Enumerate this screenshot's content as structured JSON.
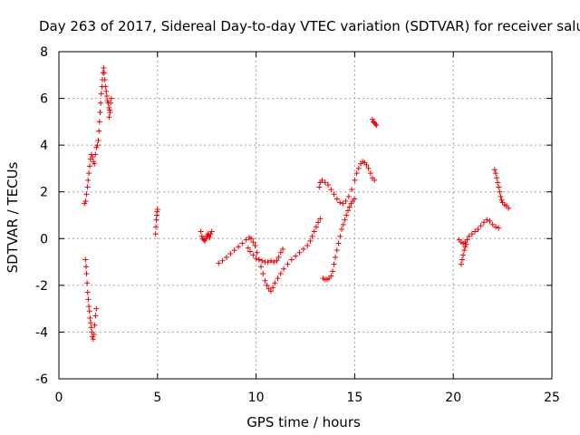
{
  "chart_data": {
    "type": "scatter",
    "title": "Day 263 of 2017, Sidereal Day-to-day VTEC variation (SDTVAR) for receiver salu",
    "xlabel": "GPS time / hours",
    "ylabel": "SDTVAR / TECUs",
    "xlim": [
      0,
      25
    ],
    "ylim": [
      -6,
      8
    ],
    "xticks": [
      "0",
      "5",
      "10",
      "15",
      "20",
      "25"
    ],
    "yticks": [
      "-6",
      "-4",
      "-2",
      "0",
      "2",
      "4",
      "6",
      "8"
    ],
    "grid": true,
    "marker": "plus",
    "color": "#ee0000",
    "series": [
      {
        "points": [
          [
            1.3,
            1.5
          ],
          [
            1.35,
            1.6
          ],
          [
            1.4,
            1.9
          ],
          [
            1.45,
            2.2
          ],
          [
            1.48,
            2.5
          ],
          [
            1.52,
            2.8
          ],
          [
            1.56,
            3.1
          ],
          [
            1.6,
            3.4
          ],
          [
            1.65,
            3.6
          ],
          [
            1.7,
            3.5
          ],
          [
            1.75,
            3.3
          ],
          [
            1.8,
            3.2
          ],
          [
            1.85,
            3.6
          ],
          [
            1.9,
            3.9
          ],
          [
            1.95,
            4.0
          ],
          [
            2.0,
            4.2
          ],
          [
            2.03,
            4.6
          ],
          [
            2.06,
            5.0
          ],
          [
            2.09,
            5.4
          ],
          [
            2.12,
            5.8
          ],
          [
            2.15,
            6.2
          ],
          [
            2.18,
            6.5
          ],
          [
            2.21,
            6.8
          ],
          [
            2.24,
            7.1
          ],
          [
            2.27,
            7.3
          ],
          [
            2.3,
            7.1
          ],
          [
            2.33,
            6.8
          ],
          [
            2.36,
            6.5
          ],
          [
            2.4,
            6.3
          ],
          [
            2.43,
            6.1
          ],
          [
            2.46,
            5.9
          ],
          [
            2.5,
            5.8
          ],
          [
            2.54,
            5.6
          ],
          [
            2.58,
            5.5
          ],
          [
            2.62,
            5.8
          ],
          [
            2.66,
            6.0
          ],
          [
            2.55,
            5.2
          ],
          [
            2.6,
            5.4
          ]
        ]
      },
      {
        "points": [
          [
            1.35,
            -0.9
          ],
          [
            1.38,
            -1.2
          ],
          [
            1.4,
            -1.5
          ],
          [
            1.43,
            -1.9
          ],
          [
            1.46,
            -2.3
          ],
          [
            1.49,
            -2.6
          ],
          [
            1.52,
            -2.9
          ],
          [
            1.55,
            -3.1
          ],
          [
            1.58,
            -3.4
          ],
          [
            1.61,
            -3.6
          ],
          [
            1.64,
            -3.8
          ],
          [
            1.67,
            -4.0
          ],
          [
            1.7,
            -4.2
          ],
          [
            1.74,
            -4.3
          ],
          [
            1.78,
            -4.1
          ],
          [
            1.82,
            -3.7
          ],
          [
            1.86,
            -3.3
          ],
          [
            1.9,
            -3.0
          ]
        ]
      },
      {
        "points": [
          [
            4.9,
            0.2
          ],
          [
            4.92,
            0.5
          ],
          [
            4.94,
            0.8
          ],
          [
            4.96,
            1.0
          ],
          [
            4.98,
            1.15
          ],
          [
            5.0,
            1.25
          ]
        ]
      },
      {
        "points": [
          [
            7.2,
            0.3
          ],
          [
            7.25,
            0.1
          ],
          [
            7.3,
            0.0
          ],
          [
            7.35,
            -0.05
          ],
          [
            7.4,
            -0.1
          ],
          [
            7.45,
            0.0
          ],
          [
            7.5,
            0.1
          ],
          [
            7.55,
            0.2
          ],
          [
            7.6,
            0.15
          ],
          [
            7.65,
            0.05
          ],
          [
            7.7,
            0.2
          ],
          [
            7.75,
            0.3
          ]
        ]
      },
      {
        "points": [
          [
            8.1,
            -1.05
          ],
          [
            8.3,
            -0.95
          ],
          [
            8.5,
            -0.8
          ],
          [
            8.7,
            -0.65
          ],
          [
            8.9,
            -0.5
          ],
          [
            9.1,
            -0.35
          ],
          [
            9.3,
            -0.2
          ],
          [
            9.5,
            -0.05
          ],
          [
            9.65,
            0.05
          ],
          [
            9.75,
            0.0
          ],
          [
            9.85,
            -0.15
          ],
          [
            9.95,
            -0.3
          ],
          [
            10.05,
            -0.6
          ],
          [
            10.15,
            -0.9
          ],
          [
            10.25,
            -1.2
          ],
          [
            10.35,
            -1.5
          ],
          [
            10.45,
            -1.8
          ],
          [
            10.55,
            -2.0
          ],
          [
            10.65,
            -2.15
          ],
          [
            10.75,
            -2.25
          ],
          [
            10.85,
            -2.1
          ],
          [
            10.95,
            -1.9
          ],
          [
            11.1,
            -1.7
          ],
          [
            11.25,
            -1.5
          ],
          [
            11.4,
            -1.3
          ],
          [
            11.6,
            -1.1
          ],
          [
            11.8,
            -0.9
          ],
          [
            12.0,
            -0.75
          ],
          [
            12.2,
            -0.6
          ],
          [
            12.4,
            -0.45
          ],
          [
            12.6,
            -0.3
          ],
          [
            12.75,
            -0.1
          ],
          [
            12.85,
            0.1
          ],
          [
            12.95,
            0.3
          ],
          [
            13.05,
            0.5
          ],
          [
            13.15,
            0.7
          ],
          [
            13.25,
            0.85
          ]
        ]
      },
      {
        "points": [
          [
            9.6,
            -0.4
          ],
          [
            9.7,
            -0.55
          ],
          [
            9.85,
            -0.7
          ],
          [
            10.0,
            -0.85
          ],
          [
            10.15,
            -0.9
          ],
          [
            10.3,
            -0.95
          ],
          [
            10.45,
            -1.0
          ],
          [
            10.6,
            -1.0
          ],
          [
            10.75,
            -0.95
          ],
          [
            10.9,
            -1.0
          ],
          [
            11.05,
            -0.95
          ],
          [
            11.15,
            -0.8
          ],
          [
            11.25,
            -0.6
          ],
          [
            11.35,
            -0.45
          ]
        ]
      },
      {
        "points": [
          [
            13.2,
            2.2
          ],
          [
            13.25,
            2.4
          ],
          [
            13.35,
            2.5
          ],
          [
            13.5,
            2.4
          ],
          [
            13.65,
            2.3
          ],
          [
            13.8,
            2.1
          ],
          [
            13.95,
            1.9
          ],
          [
            14.1,
            1.7
          ],
          [
            14.25,
            1.55
          ],
          [
            14.4,
            1.5
          ],
          [
            14.55,
            1.6
          ],
          [
            14.7,
            1.8
          ],
          [
            14.85,
            2.1
          ],
          [
            15.0,
            2.5
          ],
          [
            15.1,
            2.8
          ],
          [
            15.2,
            3.0
          ],
          [
            15.3,
            3.2
          ],
          [
            15.4,
            3.3
          ],
          [
            15.5,
            3.25
          ],
          [
            15.6,
            3.15
          ],
          [
            15.7,
            3.0
          ],
          [
            15.8,
            2.8
          ],
          [
            15.9,
            2.6
          ],
          [
            16.0,
            2.5
          ]
        ]
      },
      {
        "points": [
          [
            13.4,
            -1.7
          ],
          [
            13.5,
            -1.75
          ],
          [
            13.6,
            -1.75
          ],
          [
            13.7,
            -1.7
          ],
          [
            13.8,
            -1.6
          ],
          [
            13.88,
            -1.4
          ],
          [
            13.95,
            -1.1
          ],
          [
            14.02,
            -0.8
          ],
          [
            14.1,
            -0.5
          ],
          [
            14.18,
            -0.2
          ],
          [
            14.26,
            0.1
          ],
          [
            14.34,
            0.4
          ],
          [
            14.42,
            0.6
          ],
          [
            14.5,
            0.8
          ],
          [
            14.58,
            1.0
          ],
          [
            14.66,
            1.2
          ],
          [
            14.74,
            1.35
          ],
          [
            14.82,
            1.5
          ],
          [
            14.9,
            1.6
          ],
          [
            14.98,
            1.7
          ]
        ]
      },
      {
        "points": [
          [
            15.9,
            5.1
          ],
          [
            15.95,
            5.0
          ],
          [
            16.0,
            4.95
          ],
          [
            16.05,
            4.9
          ],
          [
            16.1,
            4.85
          ]
        ]
      },
      {
        "points": [
          [
            20.3,
            -0.05
          ],
          [
            20.4,
            -0.15
          ],
          [
            20.5,
            -0.2
          ],
          [
            20.6,
            -0.15
          ],
          [
            20.7,
            -0.05
          ],
          [
            20.8,
            0.1
          ],
          [
            20.95,
            0.2
          ],
          [
            21.1,
            0.3
          ],
          [
            21.25,
            0.4
          ],
          [
            21.4,
            0.55
          ],
          [
            21.55,
            0.7
          ],
          [
            21.7,
            0.8
          ],
          [
            21.85,
            0.75
          ],
          [
            22.0,
            0.6
          ],
          [
            22.15,
            0.5
          ],
          [
            22.3,
            0.45
          ]
        ]
      },
      {
        "points": [
          [
            20.4,
            -1.1
          ],
          [
            20.45,
            -0.9
          ],
          [
            20.5,
            -0.7
          ],
          [
            20.55,
            -0.5
          ],
          [
            20.6,
            -0.35
          ],
          [
            20.65,
            -0.25
          ]
        ]
      },
      {
        "points": [
          [
            22.1,
            2.95
          ],
          [
            22.15,
            2.8
          ],
          [
            22.2,
            2.6
          ],
          [
            22.25,
            2.4
          ],
          [
            22.3,
            2.2
          ],
          [
            22.35,
            2.0
          ],
          [
            22.4,
            1.8
          ],
          [
            22.45,
            1.65
          ],
          [
            22.5,
            1.55
          ],
          [
            22.6,
            1.45
          ],
          [
            22.7,
            1.4
          ],
          [
            22.8,
            1.3
          ]
        ]
      }
    ]
  }
}
